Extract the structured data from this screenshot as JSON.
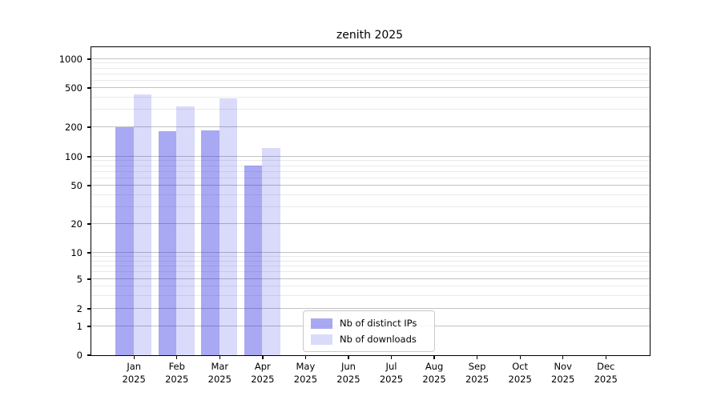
{
  "chart_data": {
    "type": "bar",
    "title": "zenith 2025",
    "categories": [
      "Jan",
      "Feb",
      "Mar",
      "Apr",
      "May",
      "Jun",
      "Jul",
      "Aug",
      "Sep",
      "Oct",
      "Nov",
      "Dec"
    ],
    "x_year_label": "2025",
    "series": [
      {
        "name": "Nb of distinct IPs",
        "color": "rgba(26,29,221,0.38)",
        "values": [
          200,
          180,
          185,
          80,
          0,
          0,
          0,
          0,
          0,
          0,
          0,
          0
        ]
      },
      {
        "name": "Nb of downloads",
        "color": "rgba(26,29,221,0.16)",
        "values": [
          425,
          320,
          390,
          122,
          0,
          0,
          0,
          0,
          0,
          0,
          0,
          0
        ]
      }
    ],
    "y_axis": {
      "scale": "log-like (1-2-5 ladder with 0 baseline)",
      "tick_labels": [
        "0",
        "1",
        "2",
        "5",
        "10",
        "20",
        "50",
        "100",
        "200",
        "500",
        "1000"
      ],
      "ylim": [
        0,
        1300
      ]
    },
    "grid": "horizontal major + minor",
    "legend": {
      "position": "lower center",
      "entries": [
        "Nb of distinct IPs",
        "Nb of downloads"
      ]
    },
    "colors": {
      "background": "#ffffff",
      "spine": "#000000",
      "grid_major": "#c3c3c3",
      "grid_minor": "#eaeaea"
    }
  }
}
